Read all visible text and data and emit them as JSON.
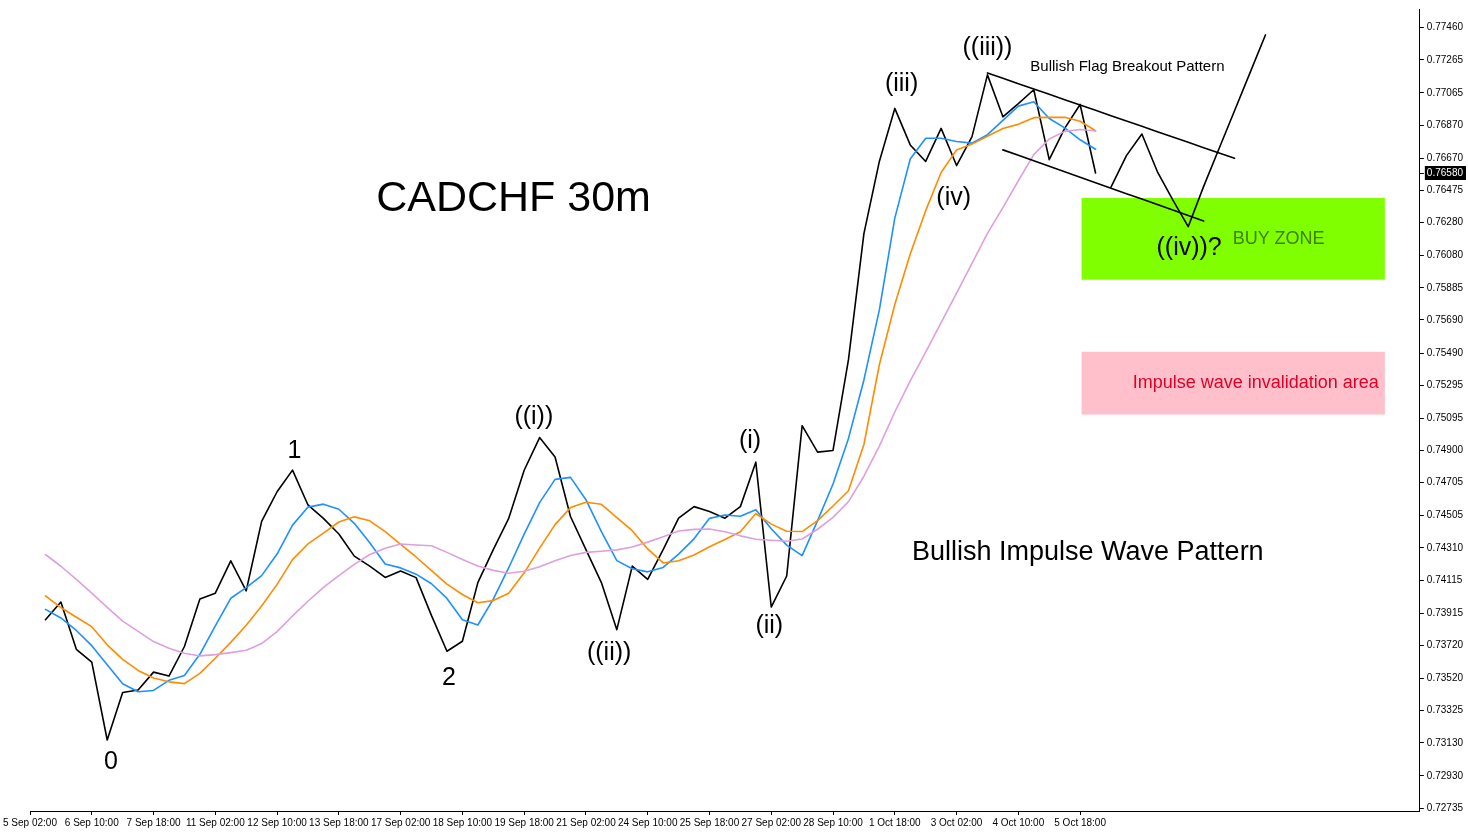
{
  "chart_data": {
    "type": "line",
    "title": "CADCHF 30m",
    "categories": [
      "5 Sep 02:00",
      null,
      null,
      null,
      "6 Sep 10:00",
      null,
      null,
      null,
      "7 Sep 18:00",
      null,
      null,
      null,
      "11 Sep 02:00",
      null,
      null,
      null,
      "12 Sep 10:00",
      null,
      null,
      null,
      "13 Sep 18:00",
      null,
      null,
      null,
      "17 Sep 02:00",
      null,
      null,
      null,
      "18 Sep 10:00",
      null,
      null,
      null,
      "19 Sep 18:00",
      null,
      null,
      null,
      "21 Sep 02:00",
      null,
      null,
      null,
      "24 Sep 10:00",
      null,
      null,
      null,
      "25 Sep 18:00",
      null,
      null,
      null,
      "27 Sep 02:00",
      null,
      null,
      null,
      "28 Sep 10:00",
      null,
      null,
      null,
      "1 Oct 18:00",
      null,
      null,
      null,
      "3 Oct 02:00",
      null,
      null,
      null,
      "4 Oct 10:00",
      null,
      null,
      null,
      "5 Oct 18:00",
      null,
      null,
      null,
      null,
      null,
      null,
      null,
      null,
      null,
      null,
      null,
      null,
      null,
      null,
      null,
      null,
      null,
      null,
      null,
      null,
      null,
      null
    ],
    "series": [
      {
        "color": "#000000",
        "values": [
          null,
          0.73875,
          0.73982,
          0.73696,
          0.73618,
          0.73147,
          0.73435,
          0.7345,
          0.73558,
          0.73534,
          0.73713,
          0.74,
          0.74036,
          0.74232,
          0.7405,
          0.74471,
          0.7465,
          0.74781,
          0.7457,
          0.74489,
          0.74394,
          0.7426,
          0.742,
          0.74131,
          0.7417,
          0.7413,
          0.739,
          0.73684,
          0.73745,
          0.741,
          0.743,
          0.74489,
          0.7478,
          0.74978,
          0.7486,
          0.745,
          0.743,
          0.741,
          0.73815,
          0.742,
          0.7412,
          0.743,
          0.7449,
          0.7456,
          0.7453,
          0.7449,
          0.7456,
          0.74829,
          0.73952,
          0.7414,
          0.7505,
          0.7489,
          0.749,
          0.7545,
          0.76213,
          0.7665,
          0.76971,
          0.7675,
          0.7665,
          0.7685,
          0.76625,
          0.768,
          0.77174,
          0.7692,
          0.77,
          0.77084,
          0.76661,
          0.7685,
          0.76995,
          0.7658,
          null,
          null,
          null,
          null,
          null,
          null,
          null,
          null,
          null,
          null,
          null,
          null,
          null,
          null,
          null,
          null,
          null,
          null,
          null,
          null,
          null
        ]
      },
      {
        "color": "#1e90ff",
        "values": [
          null,
          0.73938,
          0.73886,
          0.7381,
          0.73718,
          0.73602,
          0.73487,
          0.73439,
          0.73447,
          0.73508,
          0.73538,
          0.73666,
          0.73838,
          0.74005,
          0.74069,
          0.74142,
          0.74273,
          0.74448,
          0.74557,
          0.74575,
          0.74544,
          0.74459,
          0.74341,
          0.74212,
          0.74189,
          0.74151,
          0.74093,
          0.74004,
          0.73875,
          0.73843,
          0.74,
          0.7419,
          0.74393,
          0.74584,
          0.74725,
          0.74737,
          0.74602,
          0.74408,
          0.74233,
          0.74184,
          0.74165,
          0.74192,
          0.74272,
          0.74365,
          0.74489,
          0.74509,
          0.74502,
          0.74541,
          0.74426,
          0.74327,
          0.74263,
          0.74475,
          0.74697,
          0.74973,
          0.75327,
          0.75751,
          0.76307,
          0.76665,
          0.7679,
          0.7679,
          0.76771,
          0.76761,
          0.76812,
          0.76899,
          0.76985,
          0.77011,
          0.7691,
          0.76853,
          0.76781,
          0.76724,
          null,
          null,
          null,
          null,
          null,
          null,
          null,
          null,
          null,
          null,
          null,
          null,
          null,
          null,
          null,
          null,
          null,
          null,
          null,
          null,
          null
        ]
      },
      {
        "color": "#ff8c00",
        "values": [
          null,
          0.74019,
          0.73949,
          0.7389,
          0.73833,
          0.73723,
          0.73635,
          0.73568,
          0.73522,
          0.73499,
          0.73488,
          0.7355,
          0.73642,
          0.73738,
          0.73842,
          0.73958,
          0.74089,
          0.74239,
          0.74334,
          0.744,
          0.74467,
          0.74498,
          0.74474,
          0.74408,
          0.74332,
          0.74255,
          0.74173,
          0.74091,
          0.74028,
          0.73978,
          0.73991,
          0.74036,
          0.74159,
          0.74309,
          0.74451,
          0.74554,
          0.74586,
          0.74574,
          0.74493,
          0.74414,
          0.74304,
          0.74219,
          0.74232,
          0.74267,
          0.74317,
          0.74361,
          0.74408,
          0.74518,
          0.74454,
          0.74411,
          0.74409,
          0.74475,
          0.74564,
          0.74656,
          0.74936,
          0.75419,
          0.75784,
          0.7609,
          0.76352,
          0.76583,
          0.7672,
          0.76755,
          0.76802,
          0.76849,
          0.76875,
          0.76915,
          0.76917,
          0.76917,
          0.76893,
          0.76836,
          null,
          null,
          null,
          null,
          null,
          null,
          null,
          null,
          null,
          null,
          null,
          null,
          null,
          null,
          null,
          null,
          null,
          null,
          null,
          null,
          null
        ]
      },
      {
        "color": "#dda0dd",
        "values": [
          null,
          0.7427,
          0.74199,
          0.7412,
          0.74036,
          0.7395,
          0.73867,
          0.73805,
          0.73743,
          0.73703,
          0.73672,
          0.73656,
          0.73664,
          0.73676,
          0.7369,
          0.73731,
          0.73803,
          0.73898,
          0.73987,
          0.74071,
          0.74142,
          0.7421,
          0.7427,
          0.74308,
          0.74334,
          0.74328,
          0.74323,
          0.74283,
          0.7424,
          0.74201,
          0.74174,
          0.74157,
          0.74169,
          0.74196,
          0.74232,
          0.74264,
          0.74283,
          0.7429,
          0.74298,
          0.74315,
          0.74345,
          0.74378,
          0.74412,
          0.74422,
          0.74424,
          0.74408,
          0.74383,
          0.74362,
          0.74356,
          0.7435,
          0.74364,
          0.74423,
          0.74495,
          0.7459,
          0.74744,
          0.74926,
          0.75133,
          0.75321,
          0.75496,
          0.75674,
          0.75852,
          0.76033,
          0.76214,
          0.7637,
          0.76533,
          0.76691,
          0.76786,
          0.76832,
          0.76843,
          0.76834,
          null,
          null,
          null,
          null,
          null,
          null,
          null,
          null,
          null,
          null,
          null,
          null,
          null,
          null,
          null,
          null,
          null,
          null,
          null,
          null,
          null
        ]
      },
      {
        "color": "#000000",
        "values": [
          null,
          null,
          null,
          null,
          null,
          null,
          null,
          null,
          null,
          null,
          null,
          null,
          null,
          null,
          null,
          null,
          null,
          null,
          null,
          null,
          null,
          null,
          null,
          null,
          null,
          null,
          null,
          null,
          null,
          null,
          null,
          null,
          null,
          null,
          null,
          null,
          null,
          null,
          null,
          null,
          null,
          null,
          null,
          null,
          null,
          null,
          null,
          null,
          null,
          null,
          null,
          null,
          null,
          null,
          null,
          null,
          null,
          null,
          null,
          null,
          null,
          null,
          0.77186,
          0.77154,
          0.77121,
          0.77089,
          0.77057,
          0.77024,
          0.76992,
          0.7696,
          0.76927,
          0.76895,
          0.76863,
          0.7683,
          0.76798,
          0.76766,
          0.76733,
          0.76701,
          0.76669,
          null,
          null,
          null,
          null,
          null,
          null,
          null,
          null,
          null,
          null,
          null,
          null
        ]
      },
      {
        "color": "#000000",
        "values": [
          null,
          null,
          null,
          null,
          null,
          null,
          null,
          null,
          null,
          null,
          null,
          null,
          null,
          null,
          null,
          null,
          null,
          null,
          null,
          null,
          null,
          null,
          null,
          null,
          null,
          null,
          null,
          null,
          null,
          null,
          null,
          null,
          null,
          null,
          null,
          null,
          null,
          null,
          null,
          null,
          null,
          null,
          null,
          null,
          null,
          null,
          null,
          null,
          null,
          null,
          null,
          null,
          null,
          null,
          null,
          null,
          null,
          null,
          null,
          null,
          null,
          null,
          null,
          0.7672,
          0.76687,
          0.76654,
          0.76621,
          0.76587,
          0.76554,
          0.76521,
          0.76488,
          0.76455,
          0.76422,
          0.76389,
          0.76356,
          0.76323,
          0.7629,
          null,
          null,
          null,
          null,
          null,
          null,
          null,
          null,
          null,
          null,
          null,
          null,
          null,
          null
        ]
      },
      {
        "color": "#000000",
        "values": [
          null,
          null,
          null,
          null,
          null,
          null,
          null,
          null,
          null,
          null,
          null,
          null,
          null,
          null,
          null,
          null,
          null,
          null,
          null,
          null,
          null,
          null,
          null,
          null,
          null,
          null,
          null,
          null,
          null,
          null,
          null,
          null,
          null,
          null,
          null,
          null,
          null,
          null,
          null,
          null,
          null,
          null,
          null,
          null,
          null,
          null,
          null,
          null,
          null,
          null,
          null,
          null,
          null,
          null,
          null,
          null,
          null,
          null,
          null,
          null,
          null,
          null,
          null,
          null,
          null,
          null,
          null,
          null,
          null,
          null,
          0.76494,
          0.76685,
          0.76816,
          0.76589,
          0.76417,
          0.76255,
          0.76499,
          0.76728,
          0.76957,
          0.77186,
          0.77416,
          null,
          null,
          null,
          null,
          null,
          null,
          null,
          null,
          null,
          null
        ]
      }
    ],
    "ylim": [
      0.72717,
      0.77573
    ],
    "yticks": [
      {
        "value": 0.7746,
        "label": "0.77460"
      },
      {
        "value": 0.77265,
        "label": "0.77265"
      },
      {
        "value": 0.77065,
        "label": "0.77065"
      },
      {
        "value": 0.7687,
        "label": "0.76870"
      },
      {
        "value": 0.7667,
        "label": "0.76670"
      },
      {
        "value": 0.7658,
        "label": "0.76580"
      },
      {
        "value": 0.76475,
        "label": "0.76475"
      },
      {
        "value": 0.7628,
        "label": "0.76280"
      },
      {
        "value": 0.7608,
        "label": "0.76080"
      },
      {
        "value": 0.75885,
        "label": "0.75885"
      },
      {
        "value": 0.7569,
        "label": "0.75690"
      },
      {
        "value": 0.7549,
        "label": "0.75490"
      },
      {
        "value": 0.75295,
        "label": "0.75295"
      },
      {
        "value": 0.75095,
        "label": "0.75095"
      },
      {
        "value": 0.749,
        "label": "0.74900"
      },
      {
        "value": 0.74705,
        "label": "0.74705"
      },
      {
        "value": 0.74505,
        "label": "0.74505"
      },
      {
        "value": 0.7431,
        "label": "0.74310"
      },
      {
        "value": 0.74115,
        "label": "0.74115"
      },
      {
        "value": 0.73915,
        "label": "0.73915"
      },
      {
        "value": 0.7372,
        "label": "0.73720"
      },
      {
        "value": 0.7352,
        "label": "0.73520"
      },
      {
        "value": 0.73325,
        "label": "0.73325"
      },
      {
        "value": 0.7313,
        "label": "0.73130"
      },
      {
        "value": 0.7293,
        "label": "0.72930"
      },
      {
        "value": 0.72735,
        "label": "0.72735"
      }
    ],
    "bands": [
      {
        "axis": "y",
        "from": 0.75933,
        "to": 0.76428,
        "label": "BUY ZONE",
        "color": "#80ff00"
      },
      {
        "axis": "y",
        "from": 0.75118,
        "to": 0.75497,
        "label": "Impulse wave invalidation area",
        "color": "#ffc0cb"
      }
    ],
    "annotations": [
      "0",
      "1",
      "2",
      "((i))",
      "((ii))",
      "(i)",
      "(ii)",
      "(iii)",
      "(iv)",
      "((iii))",
      "((iv))?",
      "Bullish Flag Breakout Pattern",
      "Bullish Impulse Wave Pattern"
    ],
    "grid": false,
    "legend": false,
    "marker": "none",
    "line_style": "solid"
  }
}
